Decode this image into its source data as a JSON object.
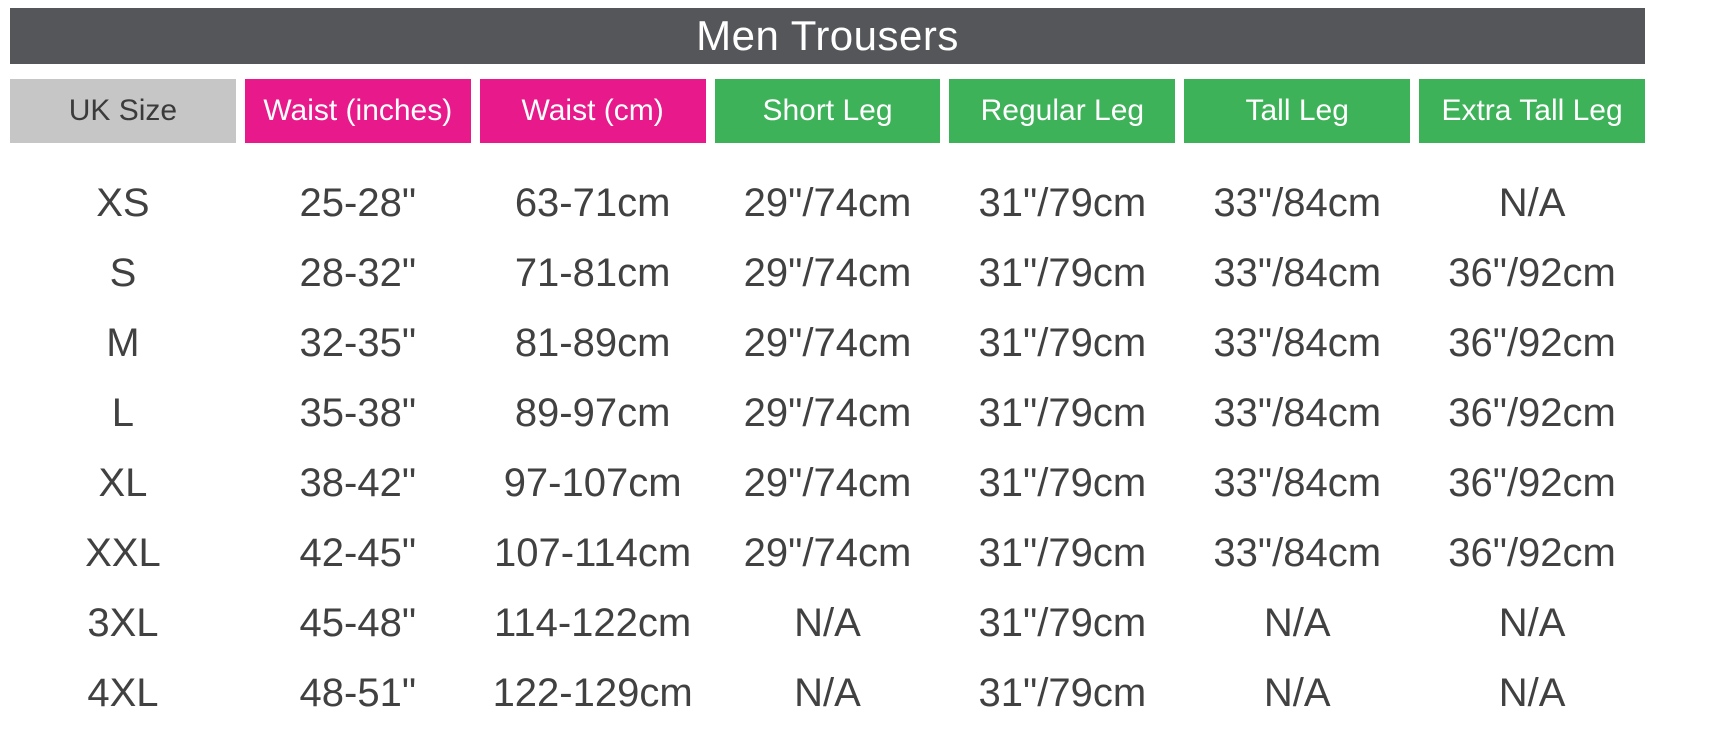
{
  "title": "Men Trousers",
  "colors": {
    "title_bar_bg": "#54565A",
    "title_text": "#ffffff",
    "uk_size_header_bg": "#C6C6C6",
    "uk_size_header_text": "#3B3B3B",
    "waist_header_bg": "#E8198B",
    "leg_header_bg": "#3EB259",
    "header_text": "#ffffff",
    "body_text": "#414141",
    "page_bg": "#ffffff"
  },
  "table": {
    "columns": [
      {
        "label": "UK Size",
        "style": "gray"
      },
      {
        "label": "Waist (inches)",
        "style": "pink"
      },
      {
        "label": "Waist (cm)",
        "style": "pink"
      },
      {
        "label": "Short Leg",
        "style": "green"
      },
      {
        "label": "Regular Leg",
        "style": "green"
      },
      {
        "label": "Tall Leg",
        "style": "green"
      },
      {
        "label": "Extra Tall Leg",
        "style": "green"
      }
    ],
    "rows": [
      [
        "XS",
        "25-28\"",
        "63-71cm",
        "29\"/74cm",
        "31\"/79cm",
        "33\"/84cm",
        "N/A"
      ],
      [
        "S",
        "28-32\"",
        "71-81cm",
        "29\"/74cm",
        "31\"/79cm",
        "33\"/84cm",
        "36\"/92cm"
      ],
      [
        "M",
        "32-35\"",
        "81-89cm",
        "29\"/74cm",
        "31\"/79cm",
        "33\"/84cm",
        "36\"/92cm"
      ],
      [
        "L",
        "35-38\"",
        "89-97cm",
        "29\"/74cm",
        "31\"/79cm",
        "33\"/84cm",
        "36\"/92cm"
      ],
      [
        "XL",
        "38-42\"",
        "97-107cm",
        "29\"/74cm",
        "31\"/79cm",
        "33\"/84cm",
        "36\"/92cm"
      ],
      [
        "XXL",
        "42-45\"",
        "107-114cm",
        "29\"/74cm",
        "31\"/79cm",
        "33\"/84cm",
        "36\"/92cm"
      ],
      [
        "3XL",
        "45-48\"",
        "114-122cm",
        "N/A",
        "31\"/79cm",
        "N/A",
        "N/A"
      ],
      [
        "4XL",
        "48-51\"",
        "122-129cm",
        "N/A",
        "31\"/79cm",
        "N/A",
        "N/A"
      ]
    ]
  },
  "chart_data": {
    "type": "table",
    "title": "Men Trousers",
    "columns": [
      "UK Size",
      "Waist (inches)",
      "Waist (cm)",
      "Short Leg",
      "Regular Leg",
      "Tall Leg",
      "Extra Tall Leg"
    ],
    "rows": [
      [
        "XS",
        "25-28\"",
        "63-71cm",
        "29\"/74cm",
        "31\"/79cm",
        "33\"/84cm",
        "N/A"
      ],
      [
        "S",
        "28-32\"",
        "71-81cm",
        "29\"/74cm",
        "31\"/79cm",
        "33\"/84cm",
        "36\"/92cm"
      ],
      [
        "M",
        "32-35\"",
        "81-89cm",
        "29\"/74cm",
        "31\"/79cm",
        "33\"/84cm",
        "36\"/92cm"
      ],
      [
        "L",
        "35-38\"",
        "89-97cm",
        "29\"/74cm",
        "31\"/79cm",
        "33\"/84cm",
        "36\"/92cm"
      ],
      [
        "XL",
        "38-42\"",
        "97-107cm",
        "29\"/74cm",
        "31\"/79cm",
        "33\"/84cm",
        "36\"/92cm"
      ],
      [
        "XXL",
        "42-45\"",
        "107-114cm",
        "29\"/74cm",
        "31\"/79cm",
        "33\"/84cm",
        "36\"/92cm"
      ],
      [
        "3XL",
        "45-48\"",
        "114-122cm",
        "N/A",
        "31\"/79cm",
        "N/A",
        "N/A"
      ],
      [
        "4XL",
        "48-51\"",
        "122-129cm",
        "N/A",
        "31\"/79cm",
        "N/A",
        "N/A"
      ]
    ]
  }
}
